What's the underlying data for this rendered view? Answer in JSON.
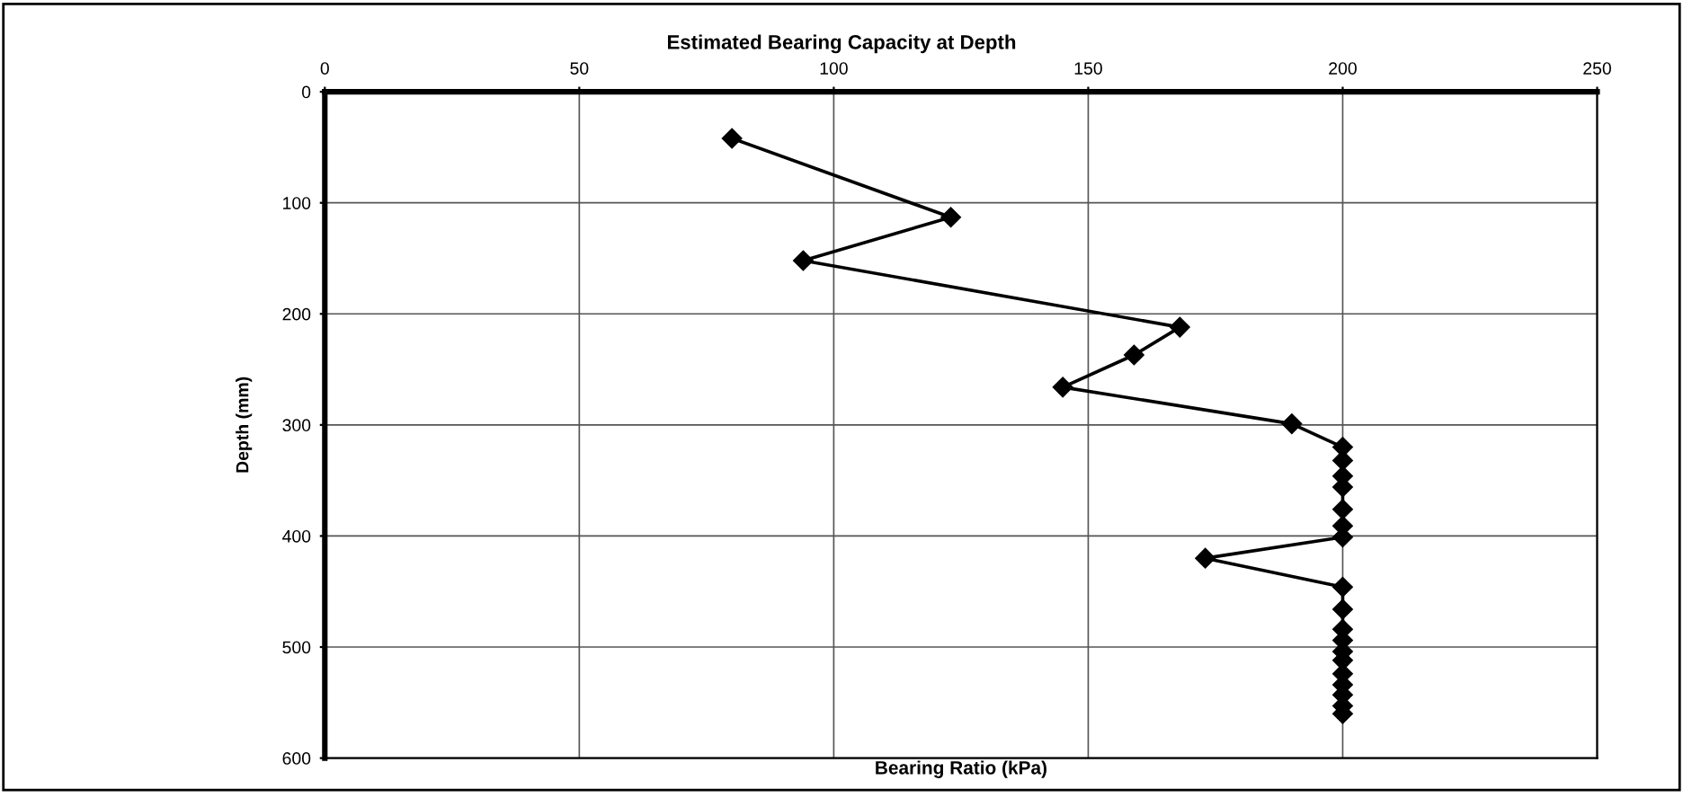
{
  "chart_data": {
    "type": "line",
    "title": "Estimated Bearing Capacity at Depth",
    "xlabel": "Bearing Ratio (kPa)",
    "ylabel": "Depth (mm)",
    "series": [
      {
        "color": "#000000",
        "x": [
          80,
          123,
          94,
          168,
          159,
          145,
          190,
          200,
          200,
          200,
          200,
          200,
          200,
          200,
          173,
          200,
          200,
          200,
          200,
          200,
          200,
          200,
          200,
          200,
          200,
          200
        ],
        "values": [
          42,
          113,
          152,
          212,
          237,
          266,
          299,
          320,
          332,
          346,
          356,
          376,
          391,
          401,
          420,
          446,
          466,
          484,
          494,
          504,
          512,
          524,
          534,
          543,
          553,
          560
        ]
      }
    ],
    "xlim": [
      0,
      250
    ],
    "xticks": [
      0,
      50,
      100,
      150,
      200,
      250
    ],
    "ylim": [
      600,
      0
    ],
    "yticks": [
      0,
      100,
      200,
      300,
      400,
      500,
      600
    ],
    "grid": true,
    "marker": "diamond",
    "line_style": "solid",
    "legend": false
  }
}
